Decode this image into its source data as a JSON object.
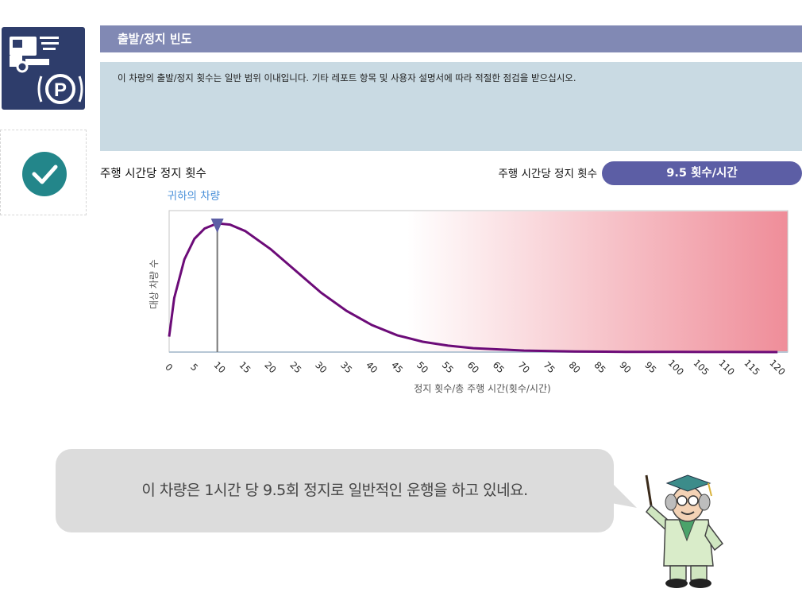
{
  "header": {
    "title": "출발/정지 빈도"
  },
  "description": "이 차량의 출발/정지 횟수는 일반 범위 이내입니다. 기타 레포트 항목 및 사용자 설명서에 따라 적절한 점검을 받으십시오.",
  "metric": {
    "left_label": "주행 시간당 정지 횟수",
    "right_label": "주행 시간당 정지 횟수",
    "value_text": "9.5 횟수/시간"
  },
  "chart_data": {
    "type": "area",
    "marker_label": "귀하의 차량",
    "marker_x": 9.5,
    "xlabel": "정지 횟수/총 주행 시간(횟수/시간)",
    "ylabel": "대상 차량 수",
    "xlim": [
      0,
      122
    ],
    "x_ticks": [
      "0",
      "5",
      "10",
      "15",
      "20",
      "25",
      "30",
      "35",
      "40",
      "45",
      "50",
      "55",
      "60",
      "65",
      "70",
      "75",
      "80",
      "85",
      "90",
      "95",
      "100",
      "105",
      "110",
      "115",
      "120"
    ],
    "series": [
      {
        "x": [
          0,
          1,
          3,
          5,
          7,
          9.5,
          12,
          15,
          20,
          25,
          30,
          35,
          40,
          45,
          50,
          55,
          60,
          70,
          80,
          90,
          100,
          110,
          120
        ],
        "values": [
          0.12,
          0.42,
          0.72,
          0.88,
          0.96,
          1.0,
          0.99,
          0.94,
          0.8,
          0.63,
          0.46,
          0.32,
          0.21,
          0.13,
          0.08,
          0.05,
          0.03,
          0.012,
          0.005,
          0.002,
          0.001,
          0.0005,
          0.0002
        ]
      }
    ],
    "gradient_start_x": 47,
    "colors": {
      "curve": "#6c0b78",
      "marker": "#5c5ea5",
      "marker_line": "#777777",
      "zone": "#ef8d99"
    }
  },
  "speech_bubble": {
    "text": "이 차량은 1시간 당 9.5회 정지로 일반적인 운행을 하고 있네요."
  },
  "icons": {
    "status": "check-circle-icon",
    "tile": "truck-parking-icon",
    "character": "professor-pointer-icon"
  }
}
